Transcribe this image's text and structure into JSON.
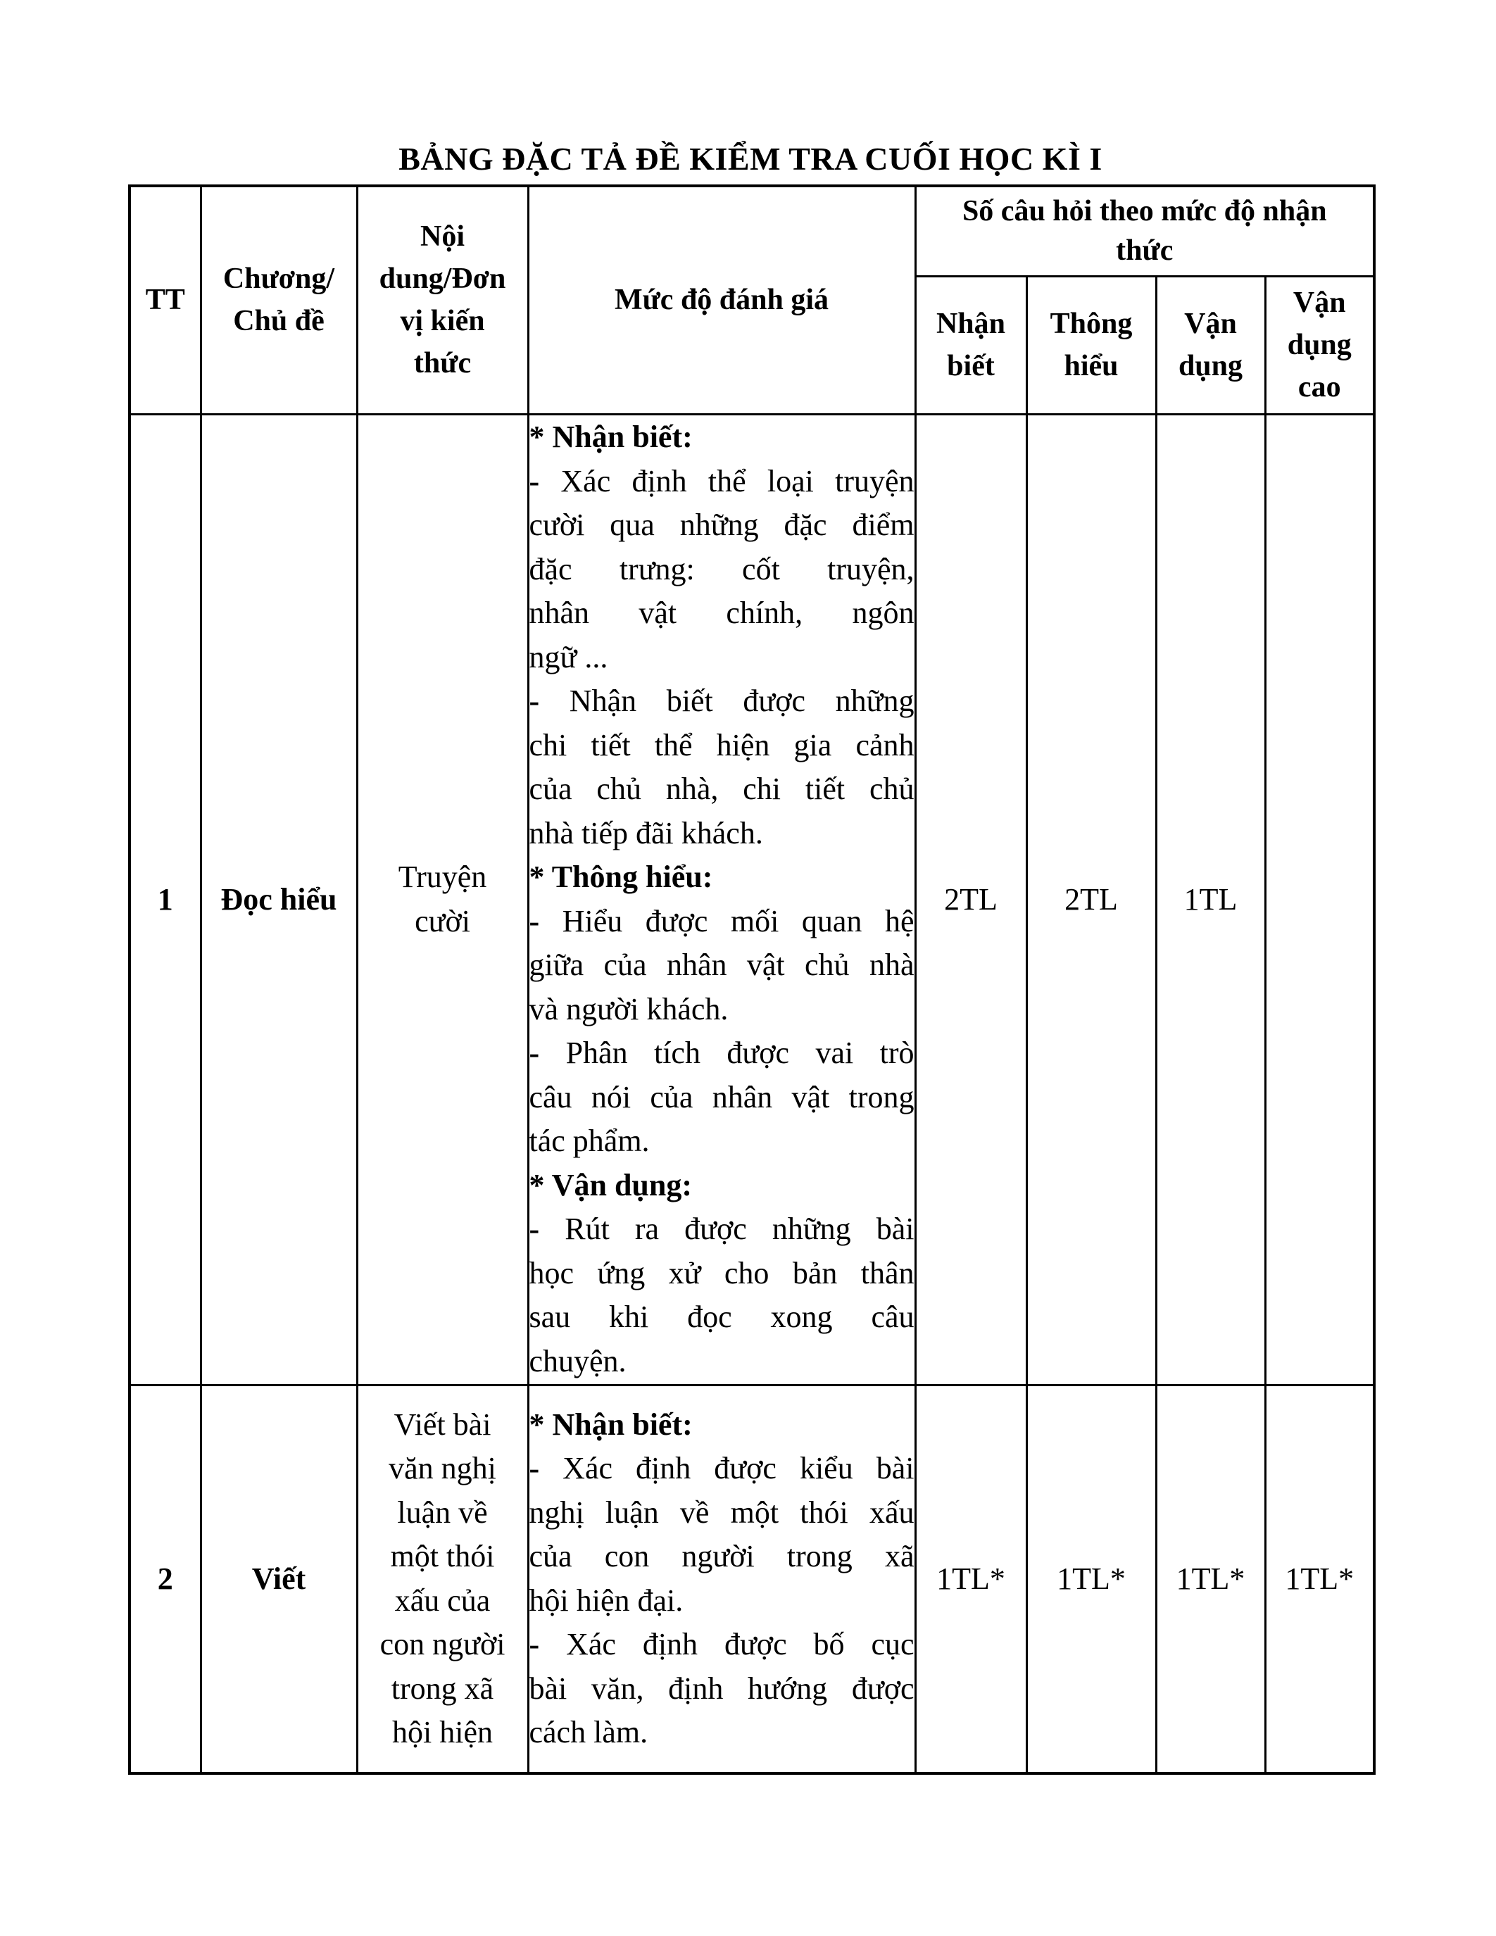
{
  "page": {
    "title": "BẢNG ĐẶC TẢ ĐỀ KIỂM TRA CUỐI HỌC KÌ I"
  },
  "table": {
    "header": {
      "tt": "TT",
      "chapter": "Chương/\nChủ đề",
      "unit": "Nội\ndung/Đơn\nvị kiến\nthức",
      "assessment": "Mức độ đánh giá",
      "question_group": "Số câu hỏi theo mức độ nhận\nthức",
      "levels": [
        {
          "label": "Nhận\nbiết"
        },
        {
          "label": "Thông\nhiểu"
        },
        {
          "label": "Vận\ndụng"
        },
        {
          "label": "Vận\ndụng\ncao"
        }
      ]
    },
    "rows": [
      {
        "tt": "1",
        "chapter": "Đọc hiểu",
        "unit_lines": [
          "Truyện",
          "cười"
        ],
        "assessment_lines": [
          {
            "s": "h",
            "t": "* Nhận biết:"
          },
          {
            "s": "j",
            "t": "- Xác định thể loại truyện"
          },
          {
            "s": "j",
            "t": "cười qua những đặc điểm"
          },
          {
            "s": "j",
            "t": "đặc trưng: cốt truyện,"
          },
          {
            "s": "j",
            "t": "nhân vật chính, ngôn"
          },
          {
            "s": "l",
            "t": "ngữ ..."
          },
          {
            "s": "j",
            "t": "- Nhận biết được những"
          },
          {
            "s": "j",
            "t": "chi tiết thể hiện gia cảnh"
          },
          {
            "s": "j",
            "t": "của chủ nhà, chi tiết chủ"
          },
          {
            "s": "l",
            "t": "nhà tiếp đãi khách."
          },
          {
            "s": "h",
            "t": "* Thông hiểu:"
          },
          {
            "s": "j",
            "t": "- Hiểu được mối quan hệ"
          },
          {
            "s": "j",
            "t": "giữa của nhân vật chủ nhà"
          },
          {
            "s": "l",
            "t": "và người khách."
          },
          {
            "s": "j",
            "t": "- Phân tích được vai trò"
          },
          {
            "s": "j",
            "t": "câu nói của nhân vật trong"
          },
          {
            "s": "l",
            "t": "tác phẩm."
          },
          {
            "s": "h",
            "t": "* Vận dụng:"
          },
          {
            "s": "j",
            "t": "- Rút ra được những bài"
          },
          {
            "s": "j",
            "t": "học ứng xử cho bản thân"
          },
          {
            "s": "j",
            "t": "sau khi đọc xong câu"
          },
          {
            "s": "l",
            "t": "chuyện."
          }
        ],
        "counts": [
          "2TL",
          "2TL",
          "1TL",
          ""
        ]
      },
      {
        "tt": "2",
        "chapter": "Viết",
        "unit_lines": [
          "Viết bài",
          "văn nghị",
          "luận về",
          "một thói",
          "xấu của",
          "con người",
          "trong xã",
          "hội hiện"
        ],
        "assessment_lines": [
          {
            "s": "h",
            "t": "* Nhận biết:"
          },
          {
            "s": "j",
            "t": "- Xác định được kiểu bài"
          },
          {
            "s": "j",
            "t": "nghị luận về một thói xấu"
          },
          {
            "s": "j",
            "t": "của con người trong xã"
          },
          {
            "s": "l",
            "t": "hội hiện đại."
          },
          {
            "s": "j",
            "t": "- Xác định được bố cục"
          },
          {
            "s": "j",
            "t": "bài văn, định hướng được"
          },
          {
            "s": "l",
            "t": "cách làm."
          }
        ],
        "counts": [
          "1TL*",
          "1TL*",
          "1TL*",
          "1TL*"
        ]
      }
    ]
  }
}
